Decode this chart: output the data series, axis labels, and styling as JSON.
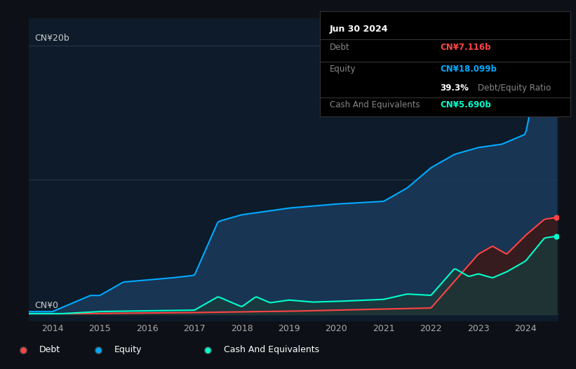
{
  "bg_color": "#0d1117",
  "plot_bg_color": "#0d1b2a",
  "equity_color": "#00aaff",
  "debt_color": "#ff4444",
  "cash_color": "#00ffcc",
  "equity_fill": "#1a3a5c",
  "debt_fill": "#3a1a1a",
  "cash_fill": "#1a3a3a",
  "y_label_20": "CN¥20b",
  "y_label_0": "CN¥0",
  "tooltip_date": "Jun 30 2024",
  "tooltip_debt_label": "Debt",
  "tooltip_debt_value": "CN¥7.116b",
  "tooltip_equity_label": "Equity",
  "tooltip_equity_value": "CN¥18.099b",
  "tooltip_ratio_pct": "39.3%",
  "tooltip_ratio_text": "Debt/Equity Ratio",
  "tooltip_cash_label": "Cash And Equivalents",
  "tooltip_cash_value": "CN¥5.690b"
}
